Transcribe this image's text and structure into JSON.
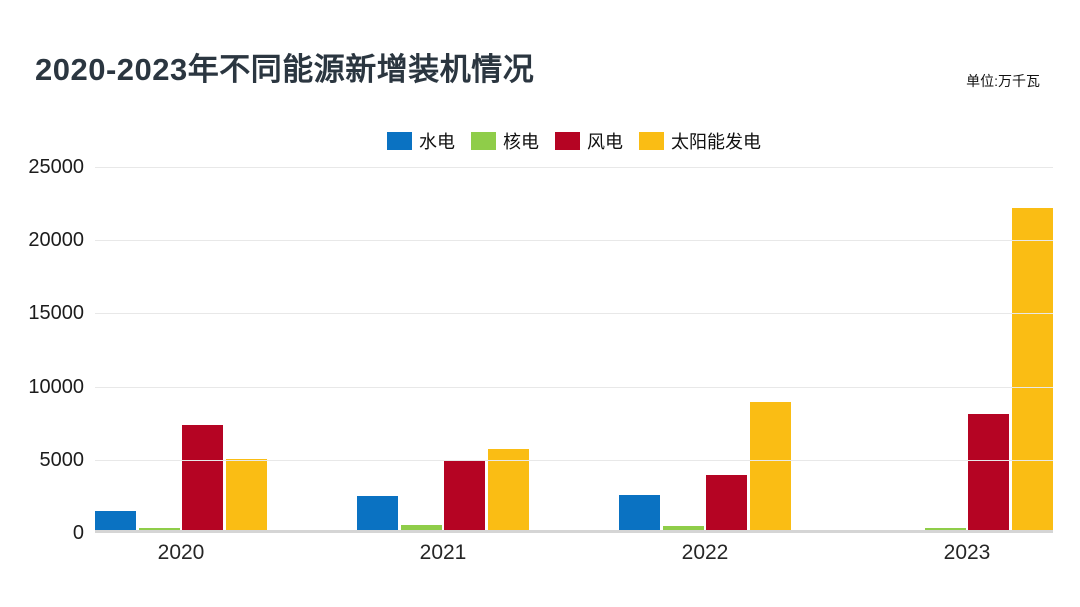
{
  "header": {
    "title": "2020-2023年不同能源新增装机情况",
    "unit_label": "单位:万千瓦"
  },
  "chart_data": {
    "type": "bar",
    "title": "2020-2023年不同能源新增装机情况",
    "subtitle": "",
    "unit_label": "单位:万千瓦",
    "xlabel": "",
    "ylabel": "",
    "categories": [
      "2020",
      "2021",
      "2022",
      "2023"
    ],
    "series": [
      {
        "name": "水电",
        "color": "#0a72c2",
        "values": [
          1300,
          2350,
          2400,
          0
        ]
      },
      {
        "name": "核电",
        "color": "#8fcd49",
        "values": [
          130,
          340,
          240,
          150
        ]
      },
      {
        "name": "风电",
        "color": "#b50423",
        "values": [
          7200,
          4780,
          3770,
          7930
        ]
      },
      {
        "name": "太阳能发电",
        "color": "#fabd14",
        "values": [
          4850,
          5500,
          8750,
          22000
        ]
      }
    ],
    "ylim": [
      0,
      25000
    ],
    "yticks": [
      0,
      5000,
      10000,
      15000,
      20000,
      25000
    ],
    "grid": true,
    "legend_position": "top-center",
    "colors": {
      "title_text": "#2b3640",
      "axis_text": "#1c1c1c",
      "gridline": "#e8e8e8",
      "baseline": "#d5d5d5",
      "background": "#ffffff"
    }
  }
}
